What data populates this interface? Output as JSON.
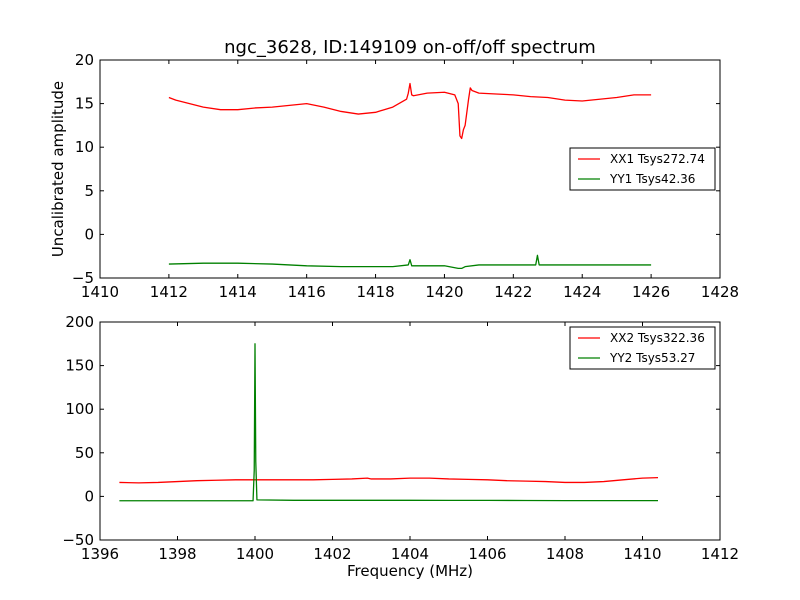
{
  "chart_data": [
    {
      "type": "line",
      "title": "ngc_3628, ID:149109 on-off/off spectrum",
      "xlabel": "",
      "ylabel": "Uncalibrated amplitude",
      "xlim": [
        1410,
        1428
      ],
      "ylim": [
        -5,
        20
      ],
      "xticks": [
        "1410",
        "1412",
        "1414",
        "1416",
        "1418",
        "1420",
        "1422",
        "1424",
        "1426",
        "1428"
      ],
      "yticks": [
        "−5",
        "0",
        "5",
        "10",
        "15",
        "20"
      ],
      "xtick_values": [
        1410,
        1412,
        1414,
        1416,
        1418,
        1420,
        1422,
        1424,
        1426,
        1428
      ],
      "ytick_values": [
        -5,
        0,
        5,
        10,
        15,
        20
      ],
      "grid": false,
      "legend_position": "right",
      "series": [
        {
          "name": "XX1 Tsys272.74",
          "color": "#ff0000",
          "x": [
            1412.0,
            1412.2,
            1412.5,
            1413.0,
            1413.5,
            1414.0,
            1414.5,
            1415.0,
            1415.5,
            1416.0,
            1416.5,
            1417.0,
            1417.5,
            1418.0,
            1418.5,
            1418.9,
            1418.95,
            1419.0,
            1419.05,
            1419.1,
            1419.5,
            1420.0,
            1420.3,
            1420.4,
            1420.45,
            1420.5,
            1420.55,
            1420.6,
            1420.7,
            1420.75,
            1420.8,
            1421.0,
            1421.5,
            1422.0,
            1422.5,
            1423.0,
            1423.5,
            1424.0,
            1424.5,
            1425.0,
            1425.5,
            1426.0
          ],
          "y": [
            15.7,
            15.4,
            15.1,
            14.6,
            14.3,
            14.3,
            14.5,
            14.6,
            14.8,
            15.0,
            14.6,
            14.1,
            13.8,
            14.0,
            14.6,
            15.5,
            16.2,
            17.3,
            16.0,
            15.9,
            16.2,
            16.3,
            16.0,
            15.0,
            11.3,
            11.0,
            12.0,
            12.5,
            15.5,
            16.8,
            16.5,
            16.2,
            16.1,
            16.0,
            15.8,
            15.7,
            15.4,
            15.3,
            15.5,
            15.7,
            16.0,
            16.0
          ]
        },
        {
          "name": "YY1 Tsys42.36",
          "color": "#008000",
          "x": [
            1412.0,
            1413.0,
            1414.0,
            1415.0,
            1416.0,
            1417.0,
            1418.0,
            1418.5,
            1418.95,
            1419.0,
            1419.05,
            1419.5,
            1420.0,
            1420.4,
            1420.5,
            1420.6,
            1421.0,
            1422.0,
            1422.65,
            1422.7,
            1422.75,
            1423.0,
            1424.0,
            1425.0,
            1426.0
          ],
          "y": [
            -3.4,
            -3.3,
            -3.3,
            -3.4,
            -3.6,
            -3.7,
            -3.7,
            -3.7,
            -3.5,
            -2.9,
            -3.6,
            -3.6,
            -3.6,
            -3.9,
            -3.9,
            -3.7,
            -3.5,
            -3.5,
            -3.5,
            -2.4,
            -3.5,
            -3.5,
            -3.5,
            -3.5,
            -3.5
          ]
        }
      ]
    },
    {
      "type": "line",
      "title": "",
      "xlabel": "Frequency (MHz)",
      "ylabel": "",
      "xlim": [
        1396,
        1412
      ],
      "ylim": [
        -50,
        200
      ],
      "xticks": [
        "1396",
        "1398",
        "1400",
        "1402",
        "1404",
        "1406",
        "1408",
        "1410",
        "1412"
      ],
      "yticks": [
        "−50",
        "0",
        "50",
        "100",
        "150",
        "200"
      ],
      "xtick_values": [
        1396,
        1398,
        1400,
        1402,
        1404,
        1406,
        1408,
        1410,
        1412
      ],
      "ytick_values": [
        -50,
        0,
        50,
        100,
        150,
        200
      ],
      "grid": false,
      "legend_position": "top-right",
      "series": [
        {
          "name": "XX2 Tsys322.36",
          "color": "#ff0000",
          "x": [
            1396.5,
            1397.0,
            1397.5,
            1398.0,
            1398.5,
            1399.0,
            1399.5,
            1400.0,
            1400.5,
            1401.0,
            1401.5,
            1402.0,
            1402.5,
            1402.9,
            1403.0,
            1403.5,
            1404.0,
            1404.5,
            1405.0,
            1405.5,
            1406.0,
            1406.5,
            1407.0,
            1407.5,
            1408.0,
            1408.5,
            1409.0,
            1409.5,
            1410.0,
            1410.4
          ],
          "y": [
            16,
            15.5,
            16,
            17,
            18,
            18.5,
            19,
            19,
            19,
            19,
            19,
            19.5,
            20,
            21,
            20,
            20,
            21,
            21,
            20,
            19.5,
            19,
            18,
            17.5,
            17,
            16,
            16,
            17,
            19,
            21,
            21.5
          ]
        },
        {
          "name": "YY2 Tsys53.27",
          "color": "#008000",
          "x": [
            1396.5,
            1397.0,
            1398.0,
            1399.0,
            1399.95,
            1399.98,
            1400.0,
            1400.02,
            1400.05,
            1401.0,
            1402.0,
            1403.0,
            1404.0,
            1405.0,
            1406.0,
            1407.0,
            1408.0,
            1409.0,
            1410.0,
            1410.4
          ],
          "y": [
            -5,
            -5,
            -5,
            -5,
            -5,
            30,
            175,
            40,
            -4,
            -4.5,
            -4.5,
            -4.5,
            -4.5,
            -4.6,
            -4.6,
            -4.7,
            -4.8,
            -4.8,
            -4.8,
            -4.8
          ]
        }
      ]
    }
  ]
}
